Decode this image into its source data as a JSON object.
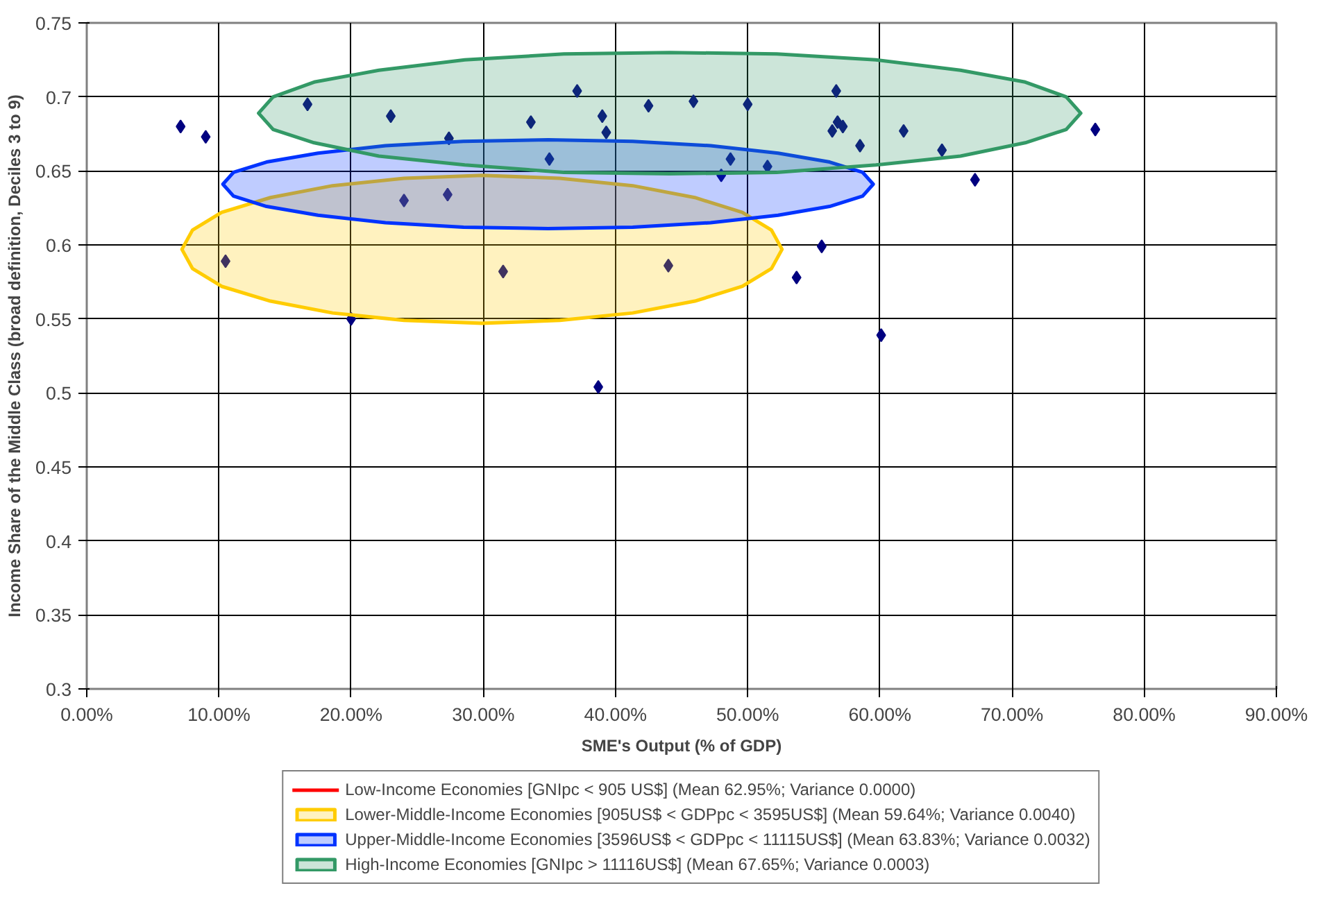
{
  "chart_data": {
    "type": "scatter",
    "xlabel": "SME's Output (% of GDP)",
    "ylabel": "Income Share of the Middle Class (broad definition, Deciles 3 to 9)",
    "xlim": [
      0,
      90
    ],
    "ylim": [
      0.3,
      0.75
    ],
    "xticks": [
      {
        "value": 0,
        "label": "0.00%"
      },
      {
        "value": 10,
        "label": "10.00%"
      },
      {
        "value": 20,
        "label": "20.00%"
      },
      {
        "value": 30,
        "label": "30.00%"
      },
      {
        "value": 40,
        "label": "40.00%"
      },
      {
        "value": 50,
        "label": "50.00%"
      },
      {
        "value": 60,
        "label": "60.00%"
      },
      {
        "value": 70,
        "label": "70.00%"
      },
      {
        "value": 80,
        "label": "80.00%"
      },
      {
        "value": 90,
        "label": "90.00%"
      }
    ],
    "yticks": [
      0.3,
      0.35,
      0.4,
      0.45,
      0.5,
      0.55,
      0.6,
      0.65,
      0.7,
      0.75
    ],
    "grid": true,
    "legend": "bottom",
    "series": [
      {
        "marker": "diamond",
        "color": "#000080",
        "x": [
          7.1,
          9.0,
          10.5,
          16.7,
          20.0,
          23.0,
          27.4,
          27.3,
          24.0,
          31.5,
          33.6,
          35.0,
          37.1,
          39.0,
          39.3,
          38.7,
          42.5,
          44.0,
          45.9,
          48.7,
          48.0,
          50.0,
          51.5,
          55.6,
          53.7,
          56.7,
          56.4,
          56.8,
          57.2,
          58.5,
          60.1,
          61.8,
          64.7,
          67.2,
          76.3
        ],
        "values": [
          0.68,
          0.673,
          0.589,
          0.695,
          0.55,
          0.687,
          0.672,
          0.634,
          0.63,
          0.582,
          0.683,
          0.658,
          0.704,
          0.687,
          0.676,
          0.504,
          0.694,
          0.586,
          0.697,
          0.658,
          0.647,
          0.695,
          0.653,
          0.599,
          0.578,
          0.704,
          0.677,
          0.683,
          0.68,
          0.667,
          0.539,
          0.677,
          0.664,
          0.644,
          0.678
        ]
      },
      {
        "type": "line",
        "name": "Low-Income Economies [GNIpc < 905 US$] (Mean 62.95%; Variance 0.0000)",
        "color": "#ff0000"
      },
      {
        "type": "area",
        "name": "Lower-Middle-Income Economies [905US$ < GDPpc < 3595US$] (Mean 59.64%; Variance 0.0040)",
        "color": "#ffcc00",
        "x": [
          52.6,
          51.8,
          49.6,
          46.0,
          41.3,
          35.8,
          29.9,
          24.0,
          18.6,
          13.9,
          10.2,
          8.0,
          7.2,
          8.0,
          10.2,
          13.9,
          18.6,
          24.0,
          29.9,
          35.8,
          41.3,
          46.0,
          49.6,
          51.8,
          52.6
        ],
        "values": [
          0.597,
          0.61,
          0.622,
          0.632,
          0.64,
          0.645,
          0.647,
          0.645,
          0.64,
          0.632,
          0.622,
          0.61,
          0.597,
          0.584,
          0.572,
          0.562,
          0.554,
          0.549,
          0.547,
          0.549,
          0.554,
          0.562,
          0.572,
          0.584,
          0.597
        ]
      },
      {
        "type": "area",
        "name": "Upper-Middle-Income Economies [3596US$ < GDPpc < 11115US$] (Mean 63.83%; Variance 0.0032)",
        "color": "#0033ff",
        "x": [
          59.5,
          58.7,
          56.2,
          52.3,
          47.2,
          41.3,
          34.9,
          28.5,
          22.6,
          17.5,
          13.6,
          11.1,
          10.3,
          11.1,
          13.6,
          17.5,
          22.6,
          28.5,
          34.9,
          41.3,
          47.2,
          52.3,
          56.2,
          58.7,
          59.5
        ],
        "values": [
          0.641,
          0.649,
          0.656,
          0.662,
          0.667,
          0.67,
          0.671,
          0.67,
          0.667,
          0.662,
          0.656,
          0.649,
          0.641,
          0.633,
          0.626,
          0.62,
          0.615,
          0.612,
          0.611,
          0.612,
          0.615,
          0.62,
          0.626,
          0.633,
          0.641
        ]
      },
      {
        "type": "area",
        "name": "High-Income Economies [GNIpc > 11116US$] (Mean 67.65%; Variance 0.0003)",
        "color": "#339966",
        "x": [
          75.2,
          74.1,
          71.0,
          66.1,
          59.7,
          52.2,
          44.1,
          36.1,
          28.6,
          22.1,
          17.2,
          14.1,
          13.0,
          14.1,
          17.2,
          22.1,
          28.6,
          36.1,
          44.1,
          52.2,
          59.7,
          66.1,
          71.0,
          74.1,
          75.2
        ],
        "values": [
          0.689,
          0.7,
          0.71,
          0.718,
          0.725,
          0.729,
          0.73,
          0.729,
          0.725,
          0.718,
          0.71,
          0.7,
          0.689,
          0.678,
          0.669,
          0.66,
          0.654,
          0.649,
          0.648,
          0.649,
          0.654,
          0.66,
          0.669,
          0.678,
          0.689
        ]
      }
    ]
  }
}
